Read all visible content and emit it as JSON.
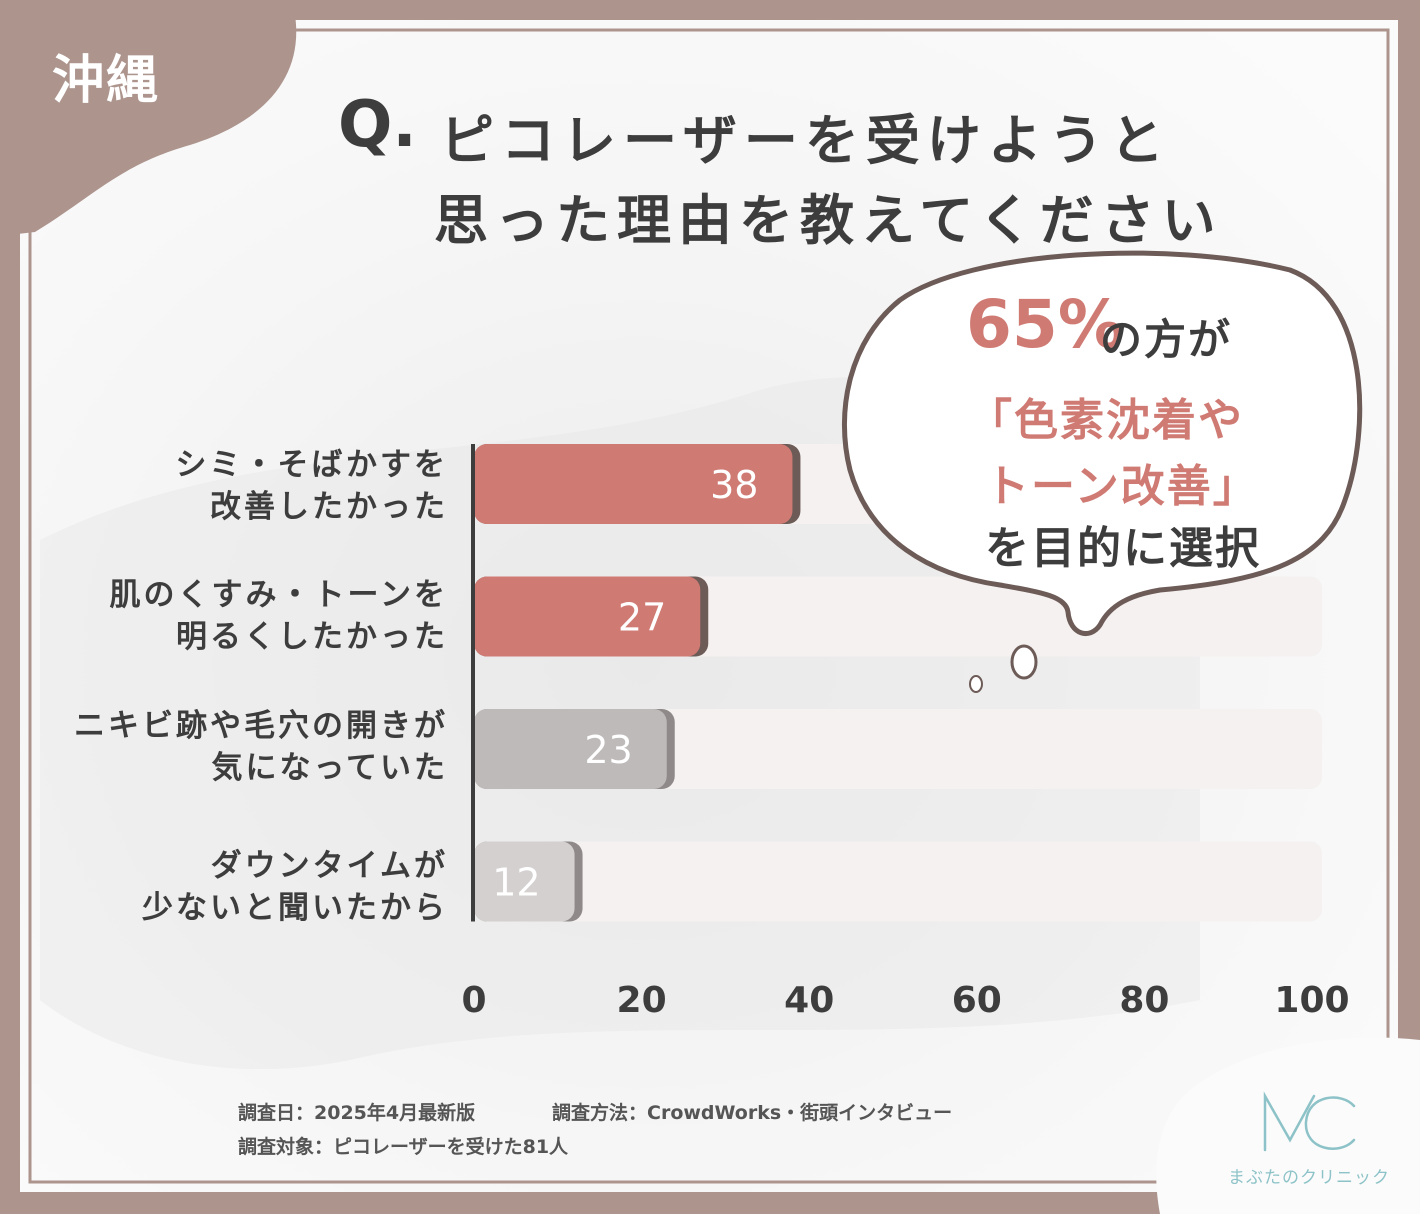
{
  "region": "沖縄",
  "title": {
    "prefix": "Q.",
    "line1": "ピコレーザーを受けようと",
    "line2": "思った理由を教えてください"
  },
  "callout": {
    "percent": "65%",
    "line1_suffix": "の方が",
    "line2": "「色素沈着や",
    "line3": "トーン改善」",
    "line4": "を目的に選択"
  },
  "chart_data": {
    "type": "bar",
    "orientation": "horizontal",
    "categories": [
      [
        "シミ・そばかすを",
        "改善したかった"
      ],
      [
        "肌のくすみ・トーンを",
        "明るくしたかった"
      ],
      [
        "ニキビ跡や毛穴の開きが",
        "気になっていた"
      ],
      [
        "ダウンタイムが",
        "少ないと聞いたから"
      ]
    ],
    "values": [
      38,
      27,
      23,
      12
    ],
    "value_labels": [
      "38",
      "27",
      "23",
      "12"
    ],
    "xlim": [
      0,
      100
    ],
    "x_ticks": [
      "0",
      "20",
      "40",
      "60",
      "80",
      "100"
    ],
    "grid": false,
    "colors": {
      "highlight": "#d07a74",
      "highlight_shadow": "#6d5b57",
      "gray": [
        "#bebab9",
        "#d3d0cf"
      ],
      "gray_shadow": "#8f8a89",
      "track": "#f4f1f0"
    }
  },
  "survey": {
    "date": "調査日：2025年4月最新版",
    "method": "調査方法：CrowdWorks・街頭インタビュー",
    "target": "調査対象：ピコレーザーを受けた81人"
  },
  "brand": {
    "logo_text": "MC",
    "name": "まぶたのクリニック",
    "color": "#8dc3c8"
  }
}
